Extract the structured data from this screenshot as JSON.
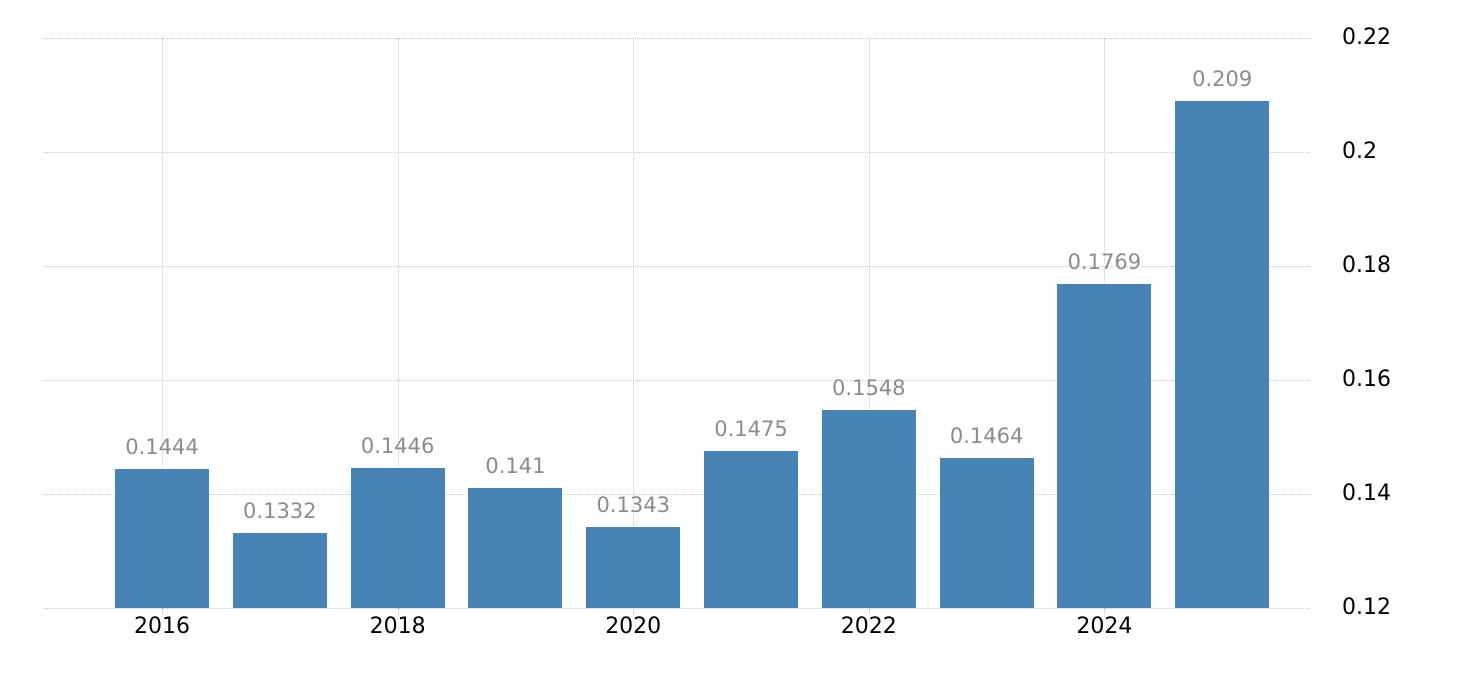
{
  "chart_data": {
    "type": "bar",
    "title": "",
    "xlabel": "",
    "ylabel": "",
    "legend": "none",
    "categories": [
      "2016",
      "2017",
      "2018",
      "2019",
      "2020",
      "2021",
      "2022",
      "2023",
      "2024",
      "2025"
    ],
    "values": [
      0.1444,
      0.1332,
      0.1446,
      0.141,
      0.1343,
      0.1475,
      0.1548,
      0.1464,
      0.1769,
      0.209
    ],
    "data_labels": [
      "0.1444",
      "0.1332",
      "0.1446",
      "0.141",
      "0.1343",
      "0.1475",
      "0.1548",
      "0.1464",
      "0.1769",
      "0.209"
    ],
    "x_tick_labels": [
      "2016",
      "2018",
      "2020",
      "2022",
      "2024"
    ],
    "x_tick_bar_indices": [
      0,
      2,
      4,
      6,
      8
    ],
    "y_tick_labels": [
      "0.22",
      "0.2",
      "0.18",
      "0.16",
      "0.14",
      "0.12"
    ],
    "y_tick_values": [
      0.22,
      0.2,
      0.18,
      0.16,
      0.14,
      0.12
    ],
    "ylim": [
      0.12,
      0.22
    ],
    "grid": {
      "horizontal": true,
      "vertical_at_labeled_years": true,
      "style": "dotted"
    },
    "colors": {
      "bar": "#4783b4",
      "grid": "#cccccc",
      "tick": "#c2c2c2",
      "data_label": "#8c8c8c",
      "axis_text": "#000000",
      "background": "#ffffff"
    }
  }
}
